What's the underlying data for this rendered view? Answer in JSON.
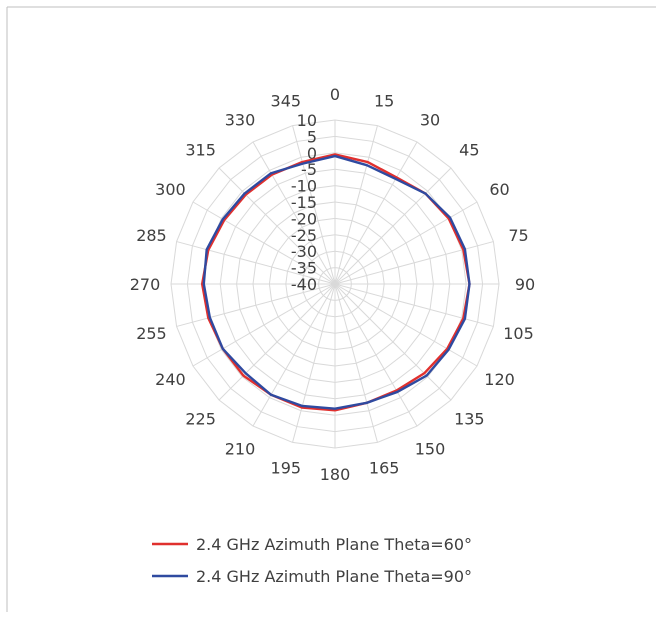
{
  "chart_data": {
    "type": "radar",
    "angles": [
      0,
      15,
      30,
      45,
      60,
      75,
      90,
      105,
      120,
      135,
      150,
      165,
      180,
      195,
      210,
      225,
      240,
      255,
      270,
      285,
      300,
      315,
      330,
      345
    ],
    "angle_labels": [
      "0",
      "15",
      "30",
      "45",
      "60",
      "75",
      "90",
      "105",
      "120",
      "135",
      "150",
      "165",
      "180",
      "195",
      "210",
      "225",
      "240",
      "255",
      "270",
      "285",
      "300",
      "315",
      "330",
      "345"
    ],
    "radial_range": [
      -40,
      10
    ],
    "radial_ticks": [
      10,
      5,
      0,
      -5,
      -10,
      -15,
      -20,
      -25,
      -30,
      -35,
      -40
    ],
    "radial_tick_labels": [
      "10",
      "5",
      "0",
      "-5",
      "-10",
      "-15",
      "-20",
      "-25",
      "-30",
      "-35",
      "-40"
    ],
    "grid": true,
    "legend_position": "bottom",
    "series": [
      {
        "name": "2.4 GHz Azimuth Plane Theta=60°",
        "color": "#e0302e",
        "values": [
          -0.5,
          -1.5,
          -2.5,
          -1.0,
          0.0,
          0.5,
          1.0,
          0.5,
          -0.5,
          -1.5,
          -2.5,
          -2.5,
          -1.5,
          -1.0,
          -1.0,
          -0.5,
          -0.5,
          0.0,
          0.5,
          0.0,
          -1.0,
          -1.5,
          -1.5,
          -1.5
        ]
      },
      {
        "name": "2.4 GHz Azimuth Plane Theta=90°",
        "color": "#2f4aa0",
        "values": [
          -1.0,
          -2.5,
          -3.0,
          -1.0,
          0.5,
          1.0,
          1.0,
          1.0,
          0.0,
          -0.5,
          -2.0,
          -2.5,
          -2.0,
          -1.5,
          -1.0,
          -1.5,
          -0.5,
          -0.5,
          0.0,
          0.5,
          -0.5,
          -1.0,
          -1.0,
          -2.0
        ]
      }
    ]
  }
}
